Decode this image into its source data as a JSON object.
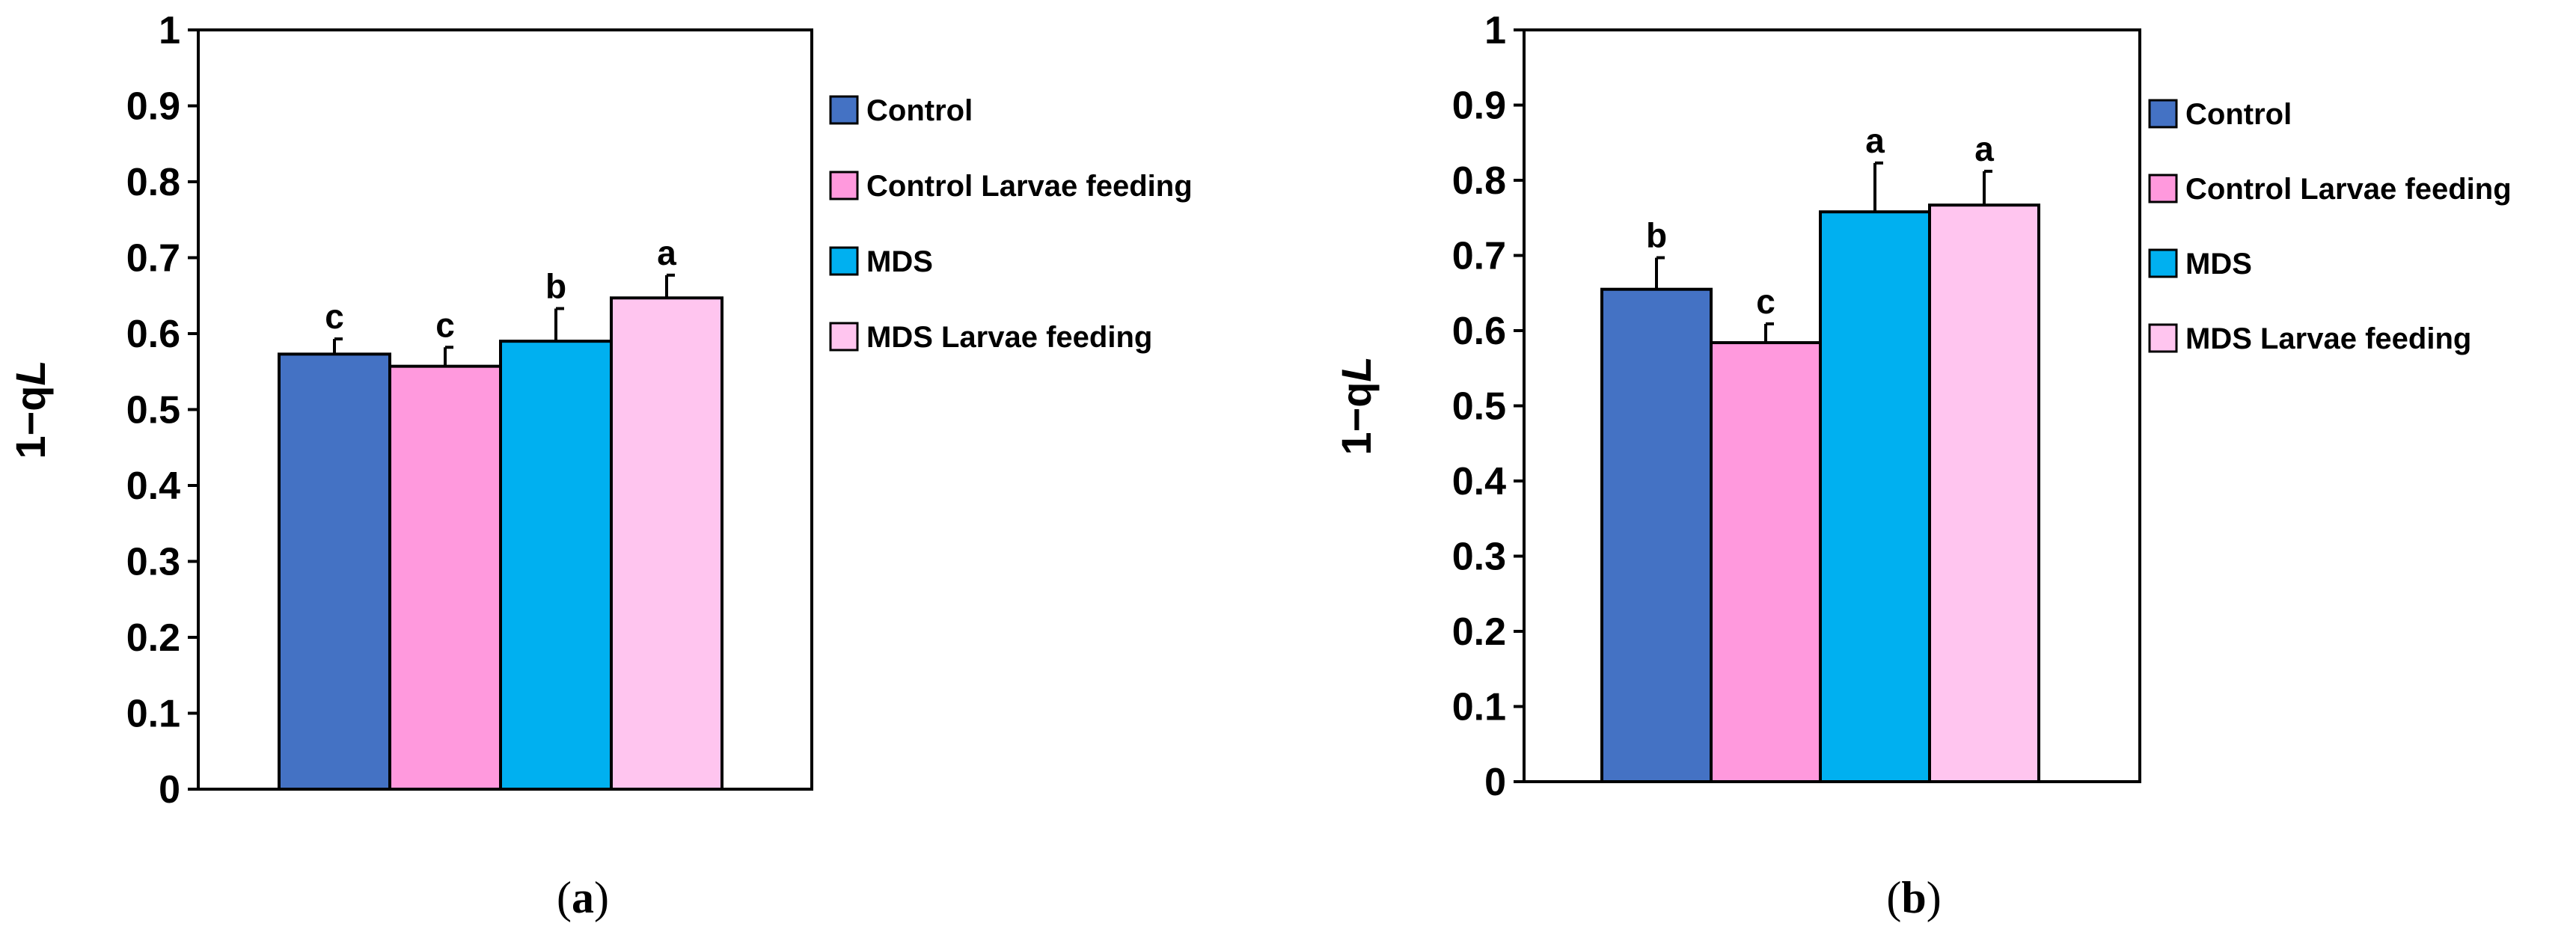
{
  "chart_data": [
    {
      "type": "bar",
      "panel_label": "(a)",
      "panel_label_parts": {
        "open": "(",
        "letter": "a",
        "close": ")"
      },
      "ylabel": {
        "prefix": "1−q",
        "italic": "L"
      },
      "ylim": [
        0,
        1
      ],
      "yticks": [
        0,
        0.1,
        0.2,
        0.3,
        0.4,
        0.5,
        0.6,
        0.7,
        0.8,
        0.9,
        1
      ],
      "ytick_labels": [
        "0",
        "0.1",
        "0.2",
        "0.3",
        "0.4",
        "0.5",
        "0.6",
        "0.7",
        "0.8",
        "0.9",
        "1"
      ],
      "legend_position": "right",
      "series": [
        {
          "name": "Control",
          "color": "#4472c4",
          "value": 0.573,
          "error": 0.02,
          "letter": "c"
        },
        {
          "name": "Control Larvae feeding",
          "color": "#ff99dd",
          "value": 0.557,
          "error": 0.025,
          "letter": "c"
        },
        {
          "name": "MDS",
          "color": "#00b0f0",
          "value": 0.59,
          "error": 0.043,
          "letter": "b"
        },
        {
          "name": "MDS Larvae feeding",
          "color": "#ffc5ef",
          "value": 0.647,
          "error": 0.03,
          "letter": "a"
        }
      ]
    },
    {
      "type": "bar",
      "panel_label": "(b)",
      "panel_label_parts": {
        "open": "(",
        "letter": "b",
        "close": ")"
      },
      "ylabel": {
        "prefix": "1−q",
        "italic": "L"
      },
      "ylim": [
        0,
        1
      ],
      "yticks": [
        0,
        0.1,
        0.2,
        0.3,
        0.4,
        0.5,
        0.6,
        0.7,
        0.8,
        0.9,
        1
      ],
      "ytick_labels": [
        "0",
        "0.1",
        "0.2",
        "0.3",
        "0.4",
        "0.5",
        "0.6",
        "0.7",
        "0.8",
        "0.9",
        "1"
      ],
      "legend_position": "right",
      "series": [
        {
          "name": "Control",
          "color": "#4472c4",
          "value": 0.655,
          "error": 0.042,
          "letter": "b"
        },
        {
          "name": "Control Larvae feeding",
          "color": "#ff99dd",
          "value": 0.584,
          "error": 0.025,
          "letter": "c"
        },
        {
          "name": "MDS",
          "color": "#00b0f0",
          "value": 0.758,
          "error": 0.065,
          "letter": "a"
        },
        {
          "name": "MDS Larvae feeding",
          "color": "#ffc5ef",
          "value": 0.767,
          "error": 0.045,
          "letter": "a"
        }
      ]
    }
  ]
}
